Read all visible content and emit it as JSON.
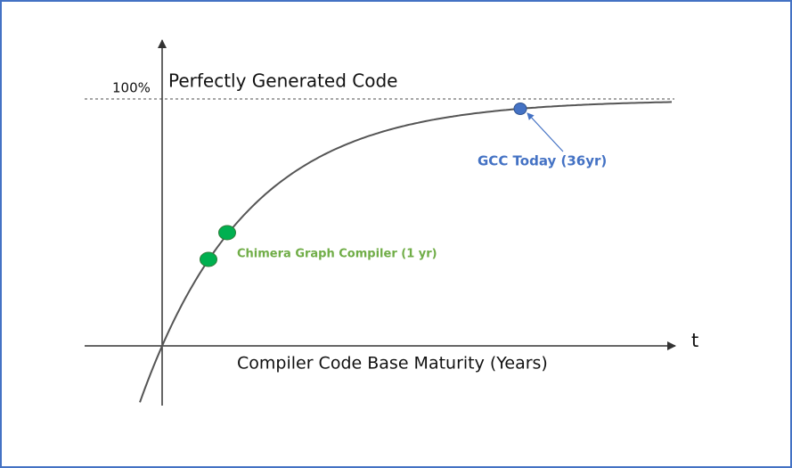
{
  "labels": {
    "top_percent": "100%",
    "top_label": "Perfectly Generated Code",
    "gcc": "GCC Today (36yr)",
    "chimera": "Chimera Graph Compiler (1 yr)",
    "axis_end": "t",
    "axis_title": "Compiler Code Base Maturity (Years)"
  }
}
